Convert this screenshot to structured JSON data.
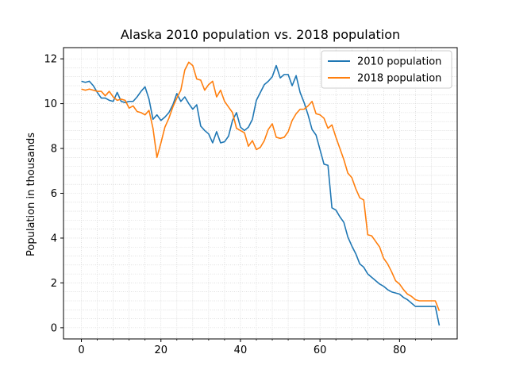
{
  "chart_data": {
    "type": "line",
    "title": "Alaska 2010 population vs. 2018 population",
    "xlabel": "",
    "ylabel": "Population in thousands",
    "xlim": [
      -4.5,
      94.5
    ],
    "ylim": [
      -0.5,
      12.5
    ],
    "xticks": [
      0,
      20,
      40,
      60,
      80
    ],
    "yticks": [
      0,
      2,
      4,
      6,
      8,
      10,
      12
    ],
    "grid": "minor dotted",
    "legend_position": "upper right",
    "x": [
      0,
      1,
      2,
      3,
      4,
      5,
      6,
      7,
      8,
      9,
      10,
      11,
      12,
      13,
      14,
      15,
      16,
      17,
      18,
      19,
      20,
      21,
      22,
      23,
      24,
      25,
      26,
      27,
      28,
      29,
      30,
      31,
      32,
      33,
      34,
      35,
      36,
      37,
      38,
      39,
      40,
      41,
      42,
      43,
      44,
      45,
      46,
      47,
      48,
      49,
      50,
      51,
      52,
      53,
      54,
      55,
      56,
      57,
      58,
      59,
      60,
      61,
      62,
      63,
      64,
      65,
      66,
      67,
      68,
      69,
      70,
      71,
      72,
      73,
      74,
      75,
      76,
      77,
      78,
      79,
      80,
      81,
      82,
      83,
      84,
      85,
      86,
      87,
      88,
      89,
      90
    ],
    "series": [
      {
        "name": "2010 population",
        "color": "#1f77b4",
        "values": [
          11.0,
          10.95,
          11.0,
          10.8,
          10.5,
          10.25,
          10.25,
          10.15,
          10.1,
          10.5,
          10.1,
          10.05,
          10.1,
          10.1,
          10.3,
          10.55,
          10.75,
          10.2,
          9.3,
          9.5,
          9.25,
          9.4,
          9.6,
          9.95,
          10.45,
          10.1,
          10.3,
          10.0,
          9.75,
          9.95,
          9.0,
          8.8,
          8.65,
          8.25,
          8.75,
          8.25,
          8.3,
          8.55,
          9.25,
          9.6,
          8.95,
          8.8,
          8.95,
          9.3,
          10.15,
          10.5,
          10.85,
          11.0,
          11.2,
          11.7,
          11.15,
          11.3,
          11.3,
          10.8,
          11.25,
          10.5,
          10.05,
          9.5,
          8.85,
          8.6,
          7.95,
          7.3,
          7.25,
          5.35,
          5.25,
          4.95,
          4.7,
          4.05,
          3.65,
          3.3,
          2.85,
          2.7,
          2.4,
          2.25,
          2.1,
          1.95,
          1.85,
          1.7,
          1.6,
          1.55,
          1.5,
          1.35,
          1.25,
          1.1,
          0.95,
          0.95,
          0.95,
          0.95,
          0.95,
          0.95,
          0.1
        ]
      },
      {
        "name": "2018 population",
        "color": "#ff7f0e",
        "values": [
          10.65,
          10.6,
          10.65,
          10.6,
          10.55,
          10.55,
          10.35,
          10.55,
          10.3,
          10.15,
          10.2,
          10.15,
          9.8,
          9.9,
          9.65,
          9.6,
          9.5,
          9.7,
          8.9,
          7.6,
          8.25,
          8.95,
          9.35,
          9.85,
          10.25,
          10.6,
          11.5,
          11.85,
          11.7,
          11.1,
          11.05,
          10.6,
          10.85,
          11.0,
          10.3,
          10.6,
          10.1,
          9.85,
          9.6,
          8.9,
          8.8,
          8.7,
          8.1,
          8.35,
          7.95,
          8.05,
          8.35,
          8.85,
          9.1,
          8.5,
          8.45,
          8.5,
          8.75,
          9.25,
          9.55,
          9.75,
          9.75,
          9.9,
          10.1,
          9.55,
          9.5,
          9.35,
          8.9,
          9.05,
          8.5,
          8.0,
          7.5,
          6.9,
          6.7,
          6.2,
          5.8,
          5.7,
          4.15,
          4.1,
          3.85,
          3.6,
          3.1,
          2.85,
          2.5,
          2.1,
          1.95,
          1.7,
          1.5,
          1.4,
          1.25,
          1.2,
          1.2,
          1.2,
          1.2,
          1.2,
          0.75
        ]
      }
    ]
  }
}
